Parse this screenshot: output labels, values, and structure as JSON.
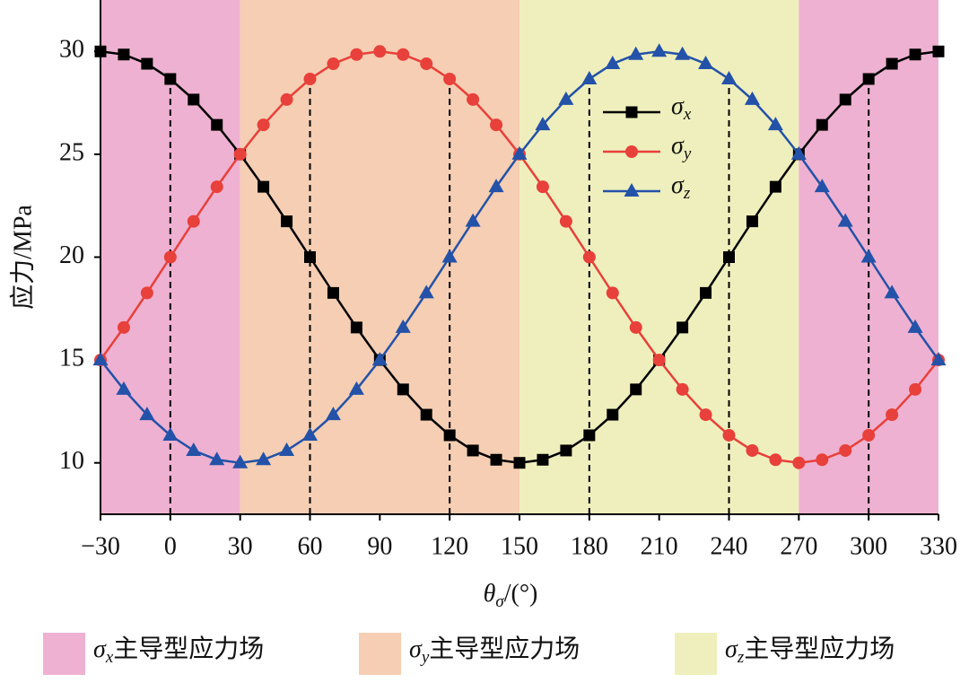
{
  "chart_data": {
    "type": "line",
    "x_label": "θσ/(°)",
    "y_label": "应力/MPa",
    "x": [
      -30,
      -20,
      -10,
      0,
      10,
      20,
      30,
      40,
      50,
      60,
      70,
      80,
      90,
      100,
      110,
      120,
      130,
      140,
      150,
      160,
      170,
      180,
      190,
      200,
      210,
      220,
      230,
      240,
      250,
      260,
      270,
      280,
      290,
      300,
      310,
      320,
      330
    ],
    "series": [
      {
        "name": "σx",
        "color": "#000000",
        "marker": "square",
        "values": [
          30,
          29.85,
          29.4,
          28.66,
          27.66,
          26.43,
          25,
          23.42,
          21.74,
          20,
          18.26,
          16.58,
          15,
          13.57,
          12.34,
          11.34,
          10.6,
          10.15,
          10,
          10.15,
          10.6,
          11.34,
          12.34,
          13.57,
          15,
          16.58,
          18.26,
          20,
          21.74,
          23.42,
          25,
          26.43,
          27.66,
          28.66,
          29.4,
          29.85,
          30
        ]
      },
      {
        "name": "σy",
        "color": "#e8403a",
        "marker": "circle",
        "values": [
          15,
          16.58,
          18.26,
          20,
          21.74,
          23.42,
          25,
          26.43,
          27.66,
          28.66,
          29.4,
          29.85,
          30,
          29.85,
          29.4,
          28.66,
          27.66,
          26.43,
          25,
          23.42,
          21.74,
          20,
          18.26,
          16.58,
          15,
          13.57,
          12.34,
          11.34,
          10.6,
          10.15,
          10,
          10.15,
          10.6,
          11.34,
          12.34,
          13.57,
          15
        ]
      },
      {
        "name": "σz",
        "color": "#2352a8",
        "marker": "triangle",
        "values": [
          15,
          13.57,
          12.34,
          11.34,
          10.6,
          10.15,
          10,
          10.15,
          10.6,
          11.34,
          12.34,
          13.57,
          15,
          16.58,
          18.26,
          20,
          21.74,
          23.42,
          25,
          26.43,
          27.66,
          28.66,
          29.4,
          29.85,
          30,
          29.85,
          29.4,
          28.66,
          27.66,
          26.43,
          25,
          23.42,
          21.74,
          20,
          18.26,
          16.58,
          15
        ]
      }
    ],
    "xlim": [
      -30,
      330
    ],
    "xticks": [
      {
        "value": -30,
        "label": "−30"
      },
      0,
      30,
      60,
      90,
      120,
      150,
      180,
      210,
      240,
      270,
      300,
      330
    ],
    "ylim": [
      7.5,
      32.5
    ],
    "yticks": [
      10,
      15,
      20,
      25,
      30
    ],
    "dashed_lines": [
      0,
      60,
      120,
      180,
      240,
      300
    ],
    "bands": [
      {
        "xlim": [
          -30,
          30
        ],
        "color": "#efb1d1"
      },
      {
        "xlim": [
          30,
          150
        ],
        "color": "#f5ceb3"
      },
      {
        "xlim": [
          150,
          270
        ],
        "color": "#efefbd"
      },
      {
        "xlim": [
          270,
          330
        ],
        "color": "#efb1d1"
      }
    ],
    "region_legend": [
      {
        "label": "σx主导型应力场",
        "color": "#efb1d1"
      },
      {
        "label": "σy主导型应力场",
        "color": "#f5ceb3"
      },
      {
        "label": "σz主导型应力场",
        "color": "#efefbd"
      }
    ]
  }
}
